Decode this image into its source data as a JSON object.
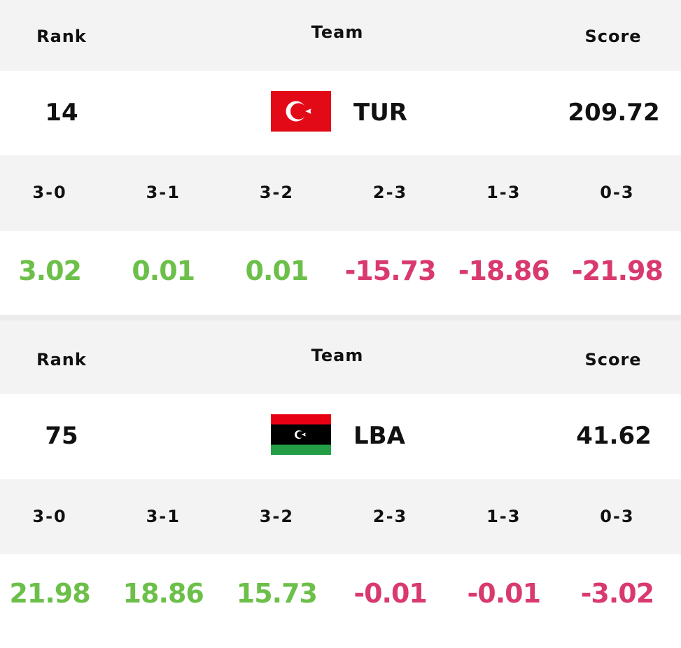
{
  "cards": [
    {
      "header": {
        "rank": "Rank",
        "team": "Team",
        "score": "Score"
      },
      "rank": "14",
      "team": "TUR",
      "score": "209.72",
      "outcomes": [
        "3-0",
        "3-1",
        "3-2",
        "2-3",
        "1-3",
        "0-3"
      ],
      "values": [
        "3.02",
        "0.01",
        "0.01",
        "-15.73",
        "-18.86",
        "-21.98"
      ]
    },
    {
      "header": {
        "rank": "Rank",
        "team": "Team",
        "score": "Score"
      },
      "rank": "75",
      "team": "LBA",
      "score": "41.62",
      "outcomes": [
        "3-0",
        "3-1",
        "3-2",
        "2-3",
        "1-3",
        "0-3"
      ],
      "values": [
        "21.98",
        "18.86",
        "15.73",
        "-0.01",
        "-0.01",
        "-3.02"
      ]
    }
  ]
}
